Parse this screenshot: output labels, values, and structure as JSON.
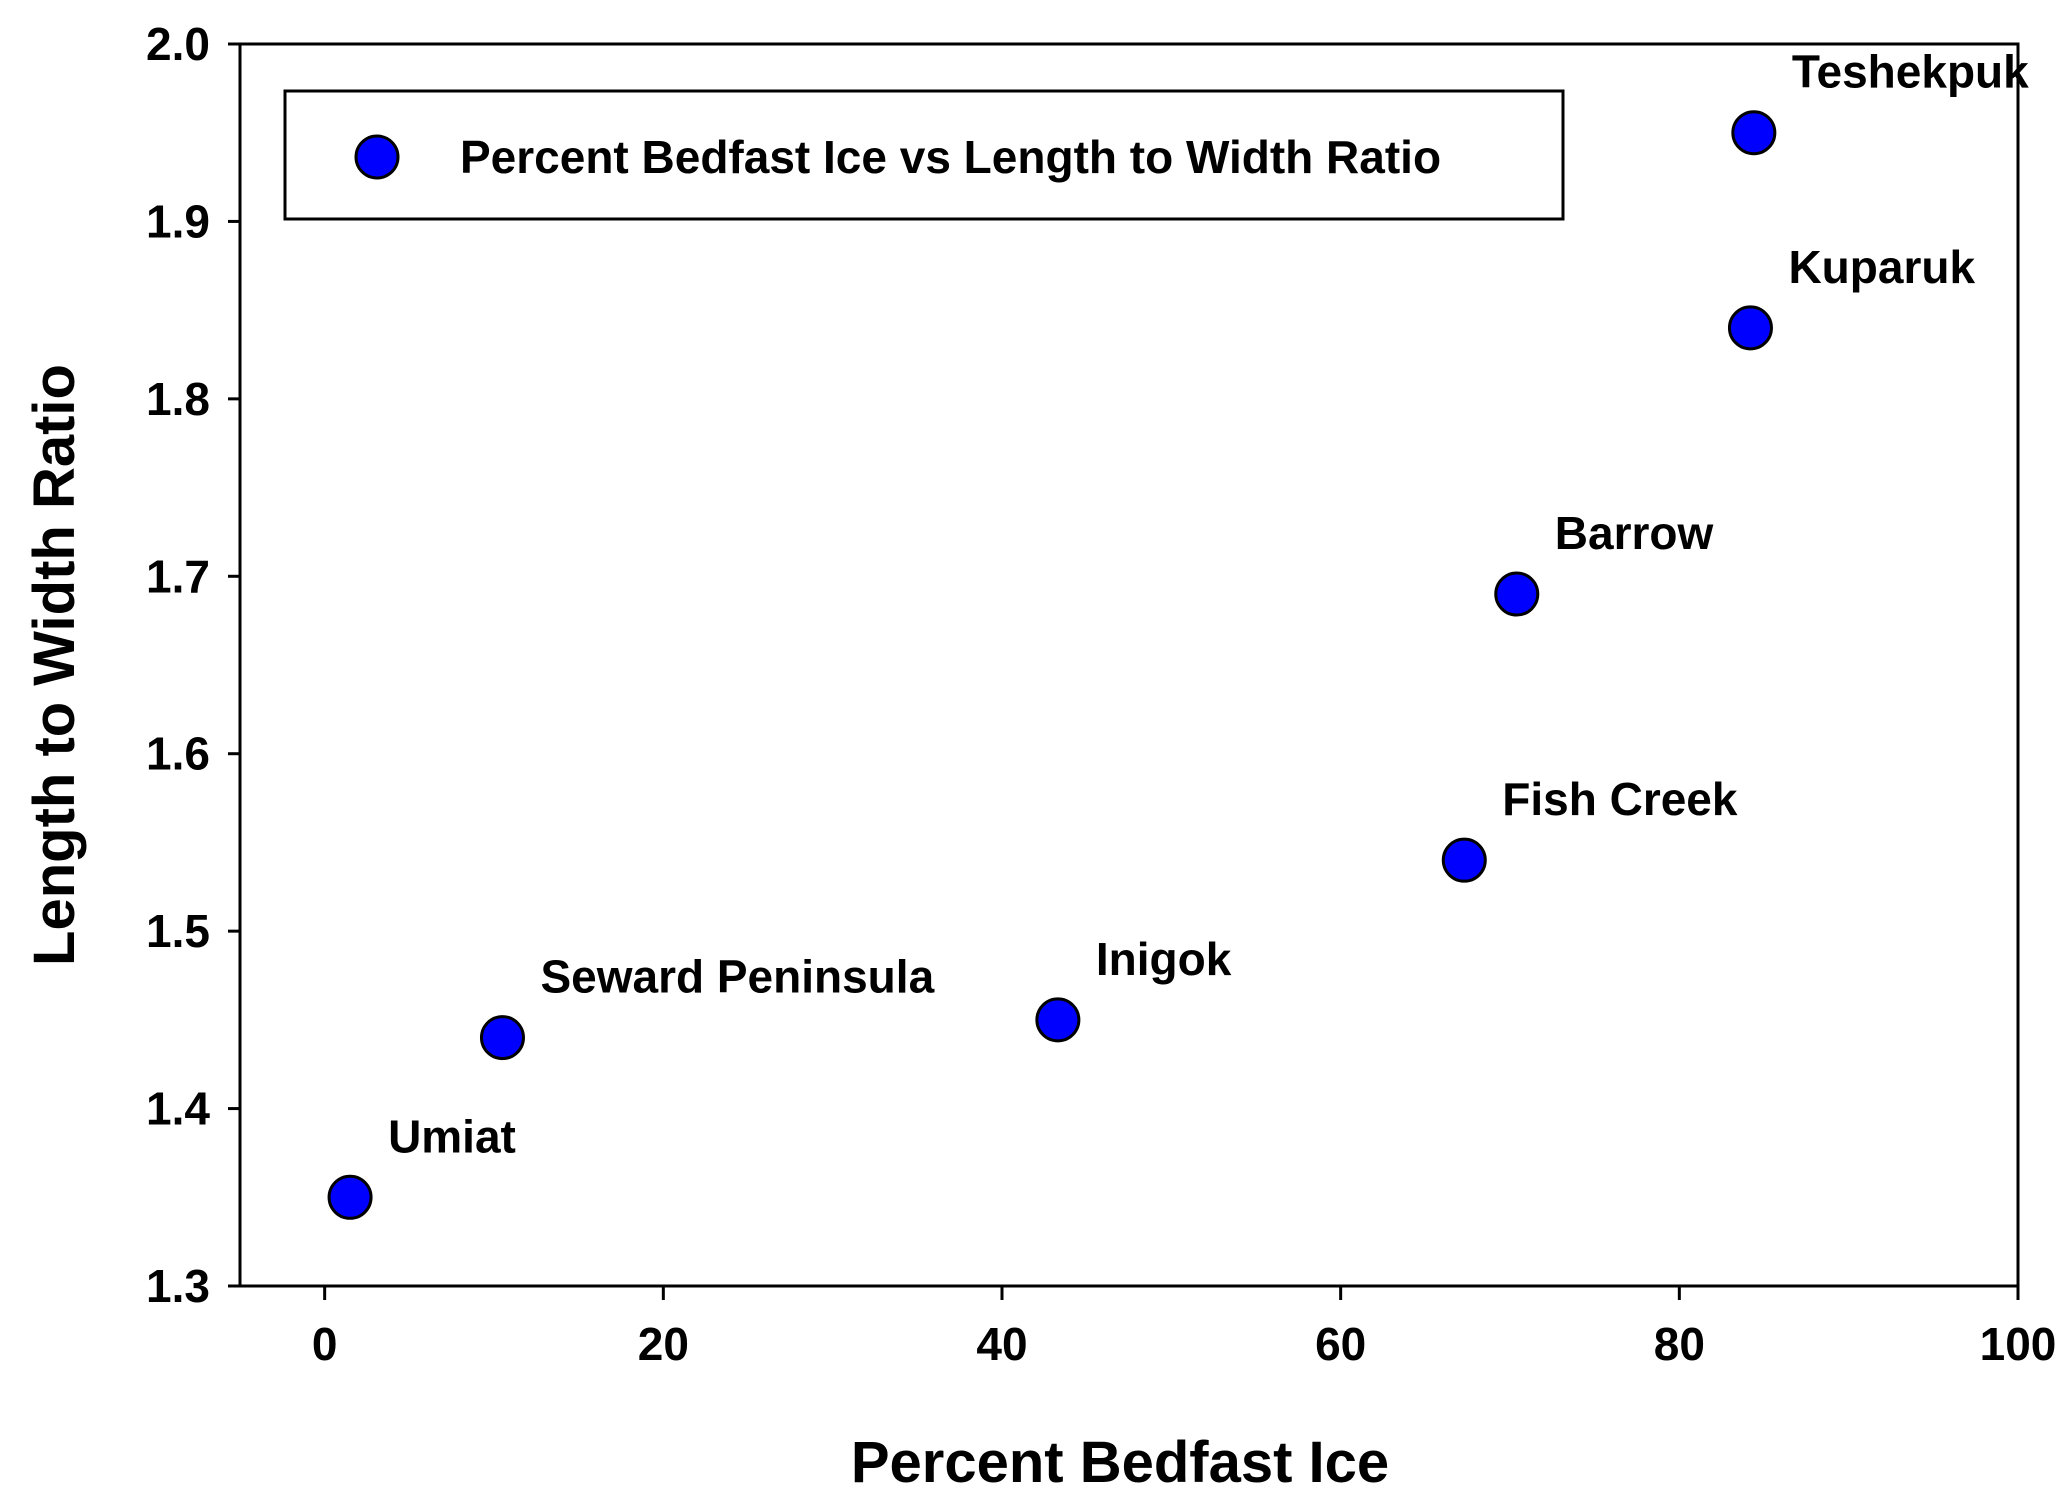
{
  "chart_data": {
    "type": "scatter",
    "xlabel": "Percent Bedfast Ice",
    "ylabel": "Length to Width Ratio",
    "xlim": [
      -5,
      100
    ],
    "ylim": [
      1.3,
      2.0
    ],
    "xticks": [
      0,
      20,
      40,
      60,
      80,
      100
    ],
    "yticks": [
      1.3,
      1.4,
      1.5,
      1.6,
      1.7,
      1.8,
      1.9,
      2.0
    ],
    "xtick_labels": [
      "0",
      "20",
      "40",
      "60",
      "80",
      "100"
    ],
    "ytick_labels": [
      "1.3",
      "1.4",
      "1.5",
      "1.6",
      "1.7",
      "1.8",
      "1.9",
      "2.0"
    ],
    "grid": false,
    "legend": {
      "placement": "top-left",
      "entries": [
        "Percent Bedfast Ice vs Length to Width Ratio"
      ]
    },
    "marker_color": "#0000ff",
    "marker_edge_color": "#000000",
    "series": [
      {
        "name": "Percent Bedfast Ice vs Length to Width Ratio",
        "points": [
          {
            "label": "Umiat",
            "x": 1.5,
            "y": 1.35
          },
          {
            "label": "Seward Peninsula",
            "x": 10.5,
            "y": 1.44
          },
          {
            "label": "Inigok",
            "x": 43.3,
            "y": 1.45
          },
          {
            "label": "Fish Creek",
            "x": 67.3,
            "y": 1.54
          },
          {
            "label": "Barrow",
            "x": 70.4,
            "y": 1.69
          },
          {
            "label": "Kuparuk",
            "x": 84.2,
            "y": 1.84
          },
          {
            "label": "Teshekpuk",
            "x": 84.4,
            "y": 1.95
          }
        ]
      }
    ]
  }
}
